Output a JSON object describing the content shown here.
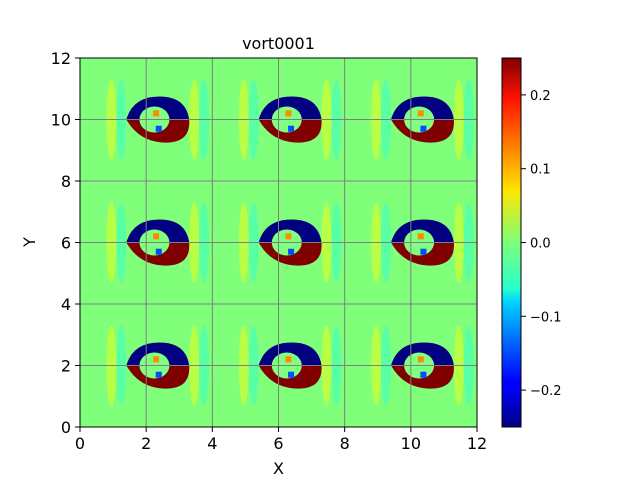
{
  "chart_data": {
    "type": "heatmap",
    "title": "vort0001",
    "xlabel": "X",
    "ylabel": "Y",
    "xlim": [
      0,
      12
    ],
    "ylim": [
      0,
      12
    ],
    "x_ticks": [
      0,
      2,
      4,
      6,
      8,
      10,
      12
    ],
    "y_ticks": [
      0,
      2,
      4,
      6,
      8,
      10,
      12
    ],
    "grid": true,
    "colormap": "jet",
    "color_range": [
      -0.25,
      0.25
    ],
    "colorbar": {
      "ticks": [
        -0.2,
        -0.1,
        0.0,
        0.1,
        0.2
      ],
      "tick_labels": [
        "−0.2",
        "−0.1",
        "0.0",
        "0.1",
        "0.2"
      ]
    },
    "vortex_pattern": {
      "columns_x": [
        2.0,
        6.0,
        10.0
      ],
      "rows_y": [
        2.0,
        6.0,
        10.0
      ],
      "description_values": {
        "upper_lobe": -0.25,
        "lower_lobe": 0.25,
        "background": 0.0
      }
    }
  }
}
